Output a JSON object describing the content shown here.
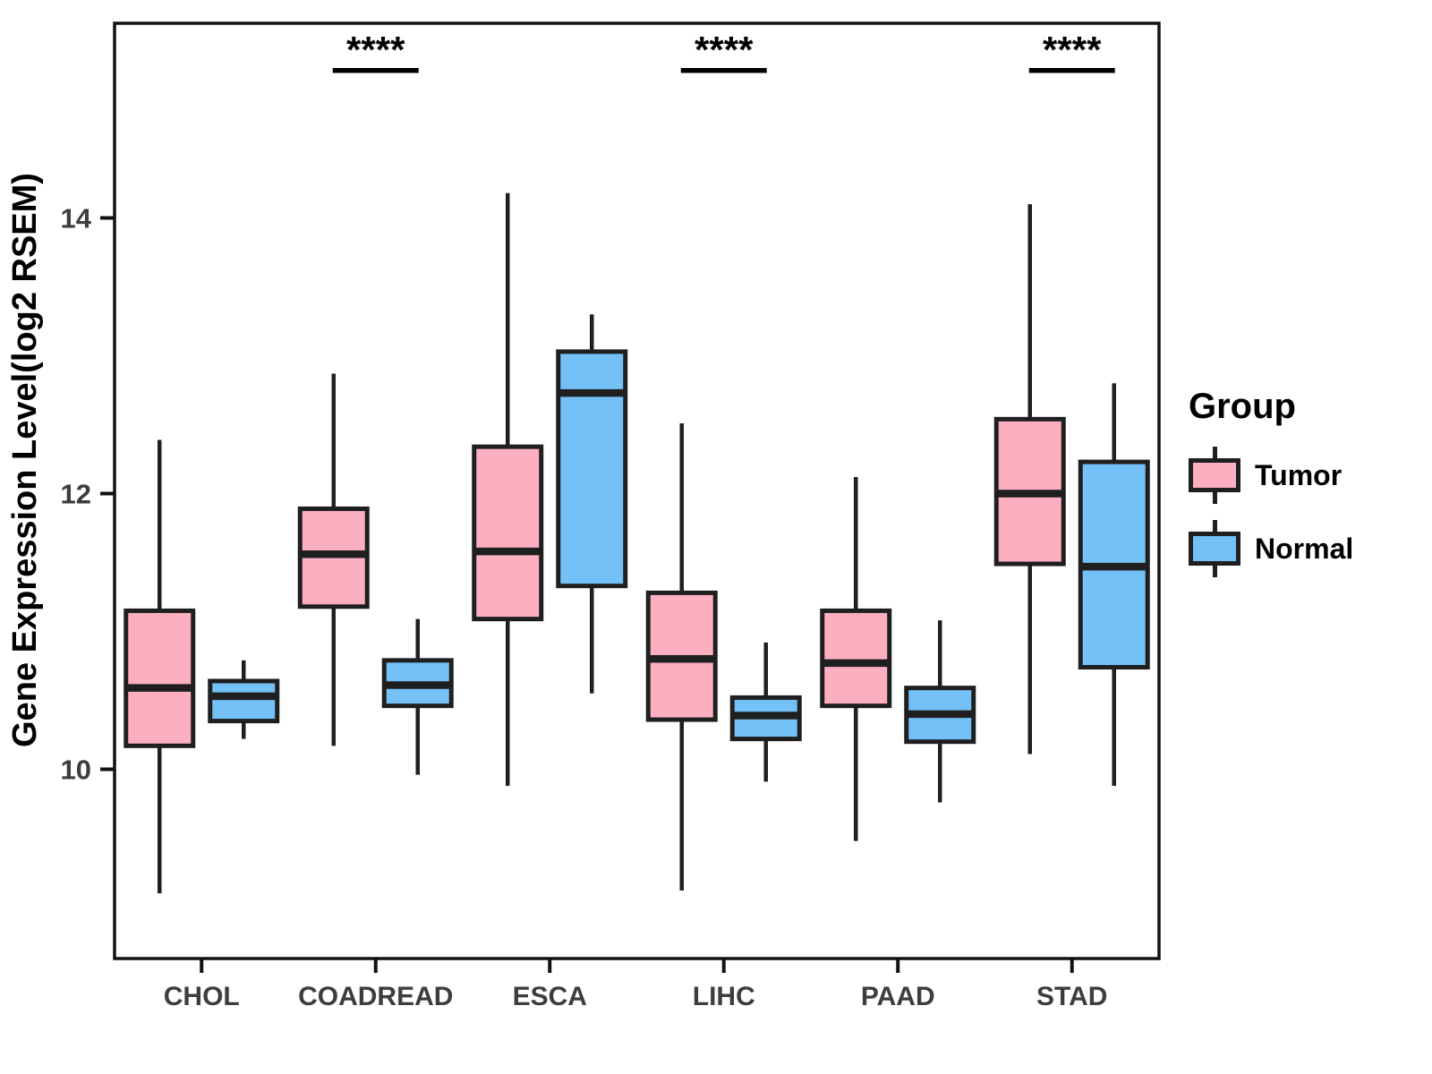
{
  "figure": {
    "y_axis_title": "Gene Expression Level(log2 RSEM)",
    "x_axis_title": ""
  },
  "legend": {
    "title": "Group",
    "entries": [
      {
        "label": "Tumor",
        "color": "#FCAFC1"
      },
      {
        "label": "Normal",
        "color": "#74C1F8"
      }
    ]
  },
  "colors": {
    "tumor_fill": "#FCAFC1",
    "normal_fill": "#74C1F8",
    "box_stroke": "#1f1f1f",
    "panel_border": "#111111",
    "tick_text": "#3d3d3d",
    "annotation": "#000000"
  },
  "chart_data": {
    "type": "box",
    "title": "",
    "xlabel": "",
    "ylabel": "Gene Expression Level(log2 RSEM)",
    "categories": [
      "CHOL",
      "COADREAD",
      "ESCA",
      "LIHC",
      "PAAD",
      "STAD"
    ],
    "y_ticks": [
      10,
      12,
      14
    ],
    "ylim": [
      8.6,
      15.4
    ],
    "grid": false,
    "legend_position": "right",
    "series": [
      {
        "name": "Tumor",
        "color": "#FCAFC1",
        "boxes": [
          {
            "category": "CHOL",
            "min": 9.1,
            "q1": 10.17,
            "median": 10.59,
            "q3": 11.15,
            "max": 12.39
          },
          {
            "category": "COADREAD",
            "min": 10.17,
            "q1": 11.18,
            "median": 11.56,
            "q3": 11.89,
            "max": 12.87
          },
          {
            "category": "ESCA",
            "min": 9.88,
            "q1": 11.09,
            "median": 11.58,
            "q3": 12.34,
            "max": 14.18
          },
          {
            "category": "LIHC",
            "min": 9.12,
            "q1": 10.36,
            "median": 10.8,
            "q3": 11.28,
            "max": 12.51
          },
          {
            "category": "PAAD",
            "min": 9.48,
            "q1": 10.46,
            "median": 10.77,
            "q3": 11.15,
            "max": 12.12
          },
          {
            "category": "STAD",
            "min": 10.11,
            "q1": 11.49,
            "median": 12.0,
            "q3": 12.54,
            "max": 14.1
          }
        ]
      },
      {
        "name": "Normal",
        "color": "#74C1F8",
        "boxes": [
          {
            "category": "CHOL",
            "min": 10.22,
            "q1": 10.35,
            "median": 10.53,
            "q3": 10.64,
            "max": 10.79
          },
          {
            "category": "COADREAD",
            "min": 9.96,
            "q1": 10.46,
            "median": 10.61,
            "q3": 10.79,
            "max": 11.09
          },
          {
            "category": "ESCA",
            "min": 10.55,
            "q1": 11.33,
            "median": 12.73,
            "q3": 13.03,
            "max": 13.3
          },
          {
            "category": "LIHC",
            "min": 9.91,
            "q1": 10.22,
            "median": 10.39,
            "q3": 10.52,
            "max": 10.92
          },
          {
            "category": "PAAD",
            "min": 9.76,
            "q1": 10.2,
            "median": 10.4,
            "q3": 10.59,
            "max": 11.08
          },
          {
            "category": "STAD",
            "min": 9.88,
            "q1": 10.74,
            "median": 11.47,
            "q3": 12.23,
            "max": 12.8
          }
        ]
      }
    ],
    "significance": [
      {
        "category": "COADREAD",
        "label": "****"
      },
      {
        "category": "LIHC",
        "label": "****"
      },
      {
        "category": "STAD",
        "label": "****"
      }
    ]
  }
}
